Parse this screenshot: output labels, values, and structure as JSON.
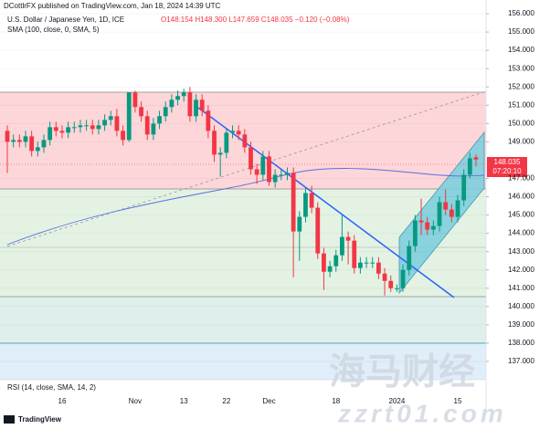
{
  "header": {
    "publisher": "DCottlrFX published on TradingView.com, Jan 18, 2024 14:39 UTC",
    "symbol": "U.S. Dollar / Japanese Yen, 1D, ICE",
    "quote": "O148.154 H148.300 L147.659 C148.035 −0.120 (−0.08%)",
    "sma": "SMA (100, close, 0, SMA, 5)",
    "rsi": "RSI (14, close, SMA, 14, 2)",
    "logo": "TradingView"
  },
  "watermark": {
    "cn": "海马财经",
    "url": "zzrt01.com"
  },
  "price_label": {
    "value": 148.035,
    "label": "148.035",
    "countdown": "07:20:10"
  },
  "chart_data": {
    "type": "candlestick",
    "up_color": "#089981",
    "down_color": "#f23645",
    "grid": true,
    "categories": [
      null,
      null,
      null,
      null,
      null,
      null,
      null,
      null,
      null,
      "16",
      null,
      null,
      null,
      null,
      null,
      null,
      null,
      null,
      null,
      null,
      null,
      "Nov",
      null,
      null,
      null,
      null,
      null,
      null,
      null,
      "13",
      null,
      null,
      null,
      null,
      null,
      null,
      "22",
      null,
      null,
      null,
      null,
      null,
      null,
      "Dec",
      null,
      null,
      null,
      null,
      null,
      null,
      null,
      null,
      null,
      null,
      "18",
      null,
      null,
      null,
      null,
      null,
      null,
      null,
      null,
      null,
      "2024",
      null,
      null,
      null,
      null,
      null,
      null,
      null,
      null,
      null,
      "15",
      null,
      null,
      null
    ],
    "open": [
      149.6,
      149.0,
      149.1,
      149.0,
      149.3,
      148.5,
      148.7,
      149.1,
      149.8,
      149.6,
      149.5,
      149.8,
      149.8,
      149.9,
      149.9,
      149.7,
      149.9,
      150.2,
      150.4,
      149.6,
      149.1,
      151.7,
      150.9,
      150.4,
      149.4,
      150.0,
      150.4,
      150.9,
      151.3,
      151.5,
      151.7,
      150.4,
      151.3,
      150.7,
      149.6,
      148.3,
      148.4,
      149.5,
      149.6,
      149.4,
      148.7,
      147.5,
      147.2,
      148.2,
      146.8,
      147.2,
      147.2,
      147.3,
      144.1,
      144.9,
      146.2,
      145.4,
      142.9,
      141.9,
      142.2,
      142.8,
      143.8,
      143.6,
      142.1,
      142.4,
      142.4,
      142.4,
      141.8,
      141.4,
      141.0,
      141.0,
      142.0,
      143.3,
      144.7,
      144.6,
      144.2,
      144.4,
      145.7,
      145.3,
      144.9,
      145.8,
      147.2,
      148.154
    ],
    "high": [
      149.9,
      149.4,
      149.4,
      149.6,
      149.6,
      149.0,
      149.4,
      150.1,
      150.1,
      149.9,
      150.1,
      150.1,
      150.2,
      150.2,
      150.2,
      150.2,
      150.5,
      150.7,
      150.8,
      149.9,
      151.7,
      151.8,
      151.2,
      150.7,
      150.3,
      150.7,
      151.2,
      151.6,
      151.8,
      151.9,
      152.0,
      151.6,
      151.6,
      151.0,
      149.9,
      148.7,
      149.7,
      149.9,
      149.9,
      149.7,
      149.0,
      147.8,
      148.5,
      148.5,
      147.5,
      147.5,
      147.6,
      147.6,
      145.2,
      146.5,
      146.6,
      145.7,
      143.2,
      142.5,
      143.1,
      145.0,
      144.1,
      143.9,
      142.7,
      142.7,
      142.7,
      142.7,
      142.1,
      141.7,
      141.2,
      142.3,
      143.6,
      145.0,
      145.9,
      144.9,
      144.7,
      146.0,
      146.4,
      145.6,
      146.1,
      147.5,
      148.4,
      148.3
    ],
    "low": [
      147.3,
      148.7,
      148.7,
      148.7,
      148.2,
      148.2,
      148.4,
      148.8,
      149.3,
      149.2,
      149.2,
      149.5,
      149.5,
      149.6,
      149.4,
      149.4,
      149.6,
      149.9,
      149.3,
      148.8,
      149.0,
      150.6,
      150.1,
      149.1,
      149.1,
      149.7,
      150.1,
      150.6,
      151.0,
      151.2,
      150.1,
      150.1,
      150.4,
      149.2,
      147.9,
      147.1,
      148.1,
      149.2,
      149.1,
      148.4,
      147.2,
      146.7,
      146.9,
      146.6,
      146.5,
      146.9,
      146.9,
      141.6,
      142.5,
      144.6,
      145.1,
      142.6,
      140.9,
      141.6,
      141.9,
      142.5,
      142.3,
      141.8,
      141.8,
      142.1,
      142.1,
      141.5,
      140.6,
      140.8,
      140.8,
      140.8,
      141.7,
      143.0,
      143.9,
      143.9,
      143.9,
      144.1,
      145.0,
      144.6,
      144.6,
      145.5,
      147.0,
      147.659
    ],
    "close": [
      149.0,
      149.1,
      149.0,
      149.3,
      148.5,
      148.7,
      149.1,
      149.8,
      149.6,
      149.5,
      149.8,
      149.8,
      149.9,
      149.9,
      149.7,
      149.9,
      150.2,
      150.4,
      149.6,
      149.1,
      151.7,
      150.9,
      150.4,
      149.4,
      150.0,
      150.4,
      150.9,
      151.3,
      151.5,
      151.7,
      150.4,
      151.3,
      150.7,
      149.6,
      148.3,
      148.4,
      149.5,
      149.6,
      149.4,
      148.7,
      147.5,
      147.2,
      148.2,
      146.8,
      147.2,
      147.2,
      147.3,
      144.1,
      144.9,
      146.2,
      145.4,
      142.9,
      141.9,
      142.2,
      142.8,
      143.8,
      143.6,
      142.1,
      142.4,
      142.4,
      142.4,
      141.8,
      141.4,
      141.0,
      141.0,
      142.0,
      143.3,
      144.7,
      144.6,
      144.2,
      144.4,
      145.7,
      145.3,
      144.9,
      145.8,
      147.2,
      148.1,
      148.035
    ],
    "ylim": [
      136.0,
      156.75
    ],
    "yticks": [
      {
        "value": 156,
        "label": "156.000"
      },
      {
        "value": 155,
        "label": "155.000"
      },
      {
        "value": 154,
        "label": "154.000"
      },
      {
        "value": 153,
        "label": "153.000"
      },
      {
        "value": 152,
        "label": "152.000"
      },
      {
        "value": 151,
        "label": "151.000"
      },
      {
        "value": 150,
        "label": "150.000"
      },
      {
        "value": 149,
        "label": "149.000"
      },
      {
        "value": 147,
        "label": "147.000"
      },
      {
        "value": 146,
        "label": "146.000"
      },
      {
        "value": 145,
        "label": "145.000"
      },
      {
        "value": 144,
        "label": "144.000"
      },
      {
        "value": 143,
        "label": "143.000"
      },
      {
        "value": 142,
        "label": "142.000"
      },
      {
        "value": 141,
        "label": "141.000"
      },
      {
        "value": 140,
        "label": "140.000"
      },
      {
        "value": 139,
        "label": "139.000"
      },
      {
        "value": 138,
        "label": "138.000"
      },
      {
        "value": 137,
        "label": "137.000"
      }
    ]
  }
}
